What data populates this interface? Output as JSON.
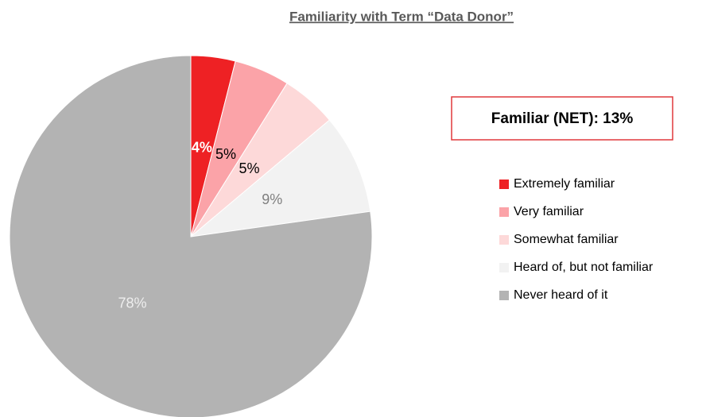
{
  "chart_data": {
    "type": "pie",
    "title": "Familiarity with Term “Data Donor”",
    "annotation": "Familiar (NET): 13%",
    "categories": [
      "Extremely familiar",
      "Very familiar",
      "Somewhat familiar",
      "Heard of, but not familiar",
      "Never heard of it"
    ],
    "values": [
      4,
      5,
      5,
      9,
      78
    ],
    "value_labels": [
      "4%",
      "5%",
      "5%",
      "9%",
      "78%"
    ],
    "colors": [
      "#ee2124",
      "#fba3a8",
      "#fdd9d9",
      "#f2f2f2",
      "#b3b3b3"
    ],
    "label_colors": [
      "#ffffff",
      "#000000",
      "#000000",
      "#7f7f7f",
      "#eeeeee"
    ],
    "legend": "right"
  }
}
